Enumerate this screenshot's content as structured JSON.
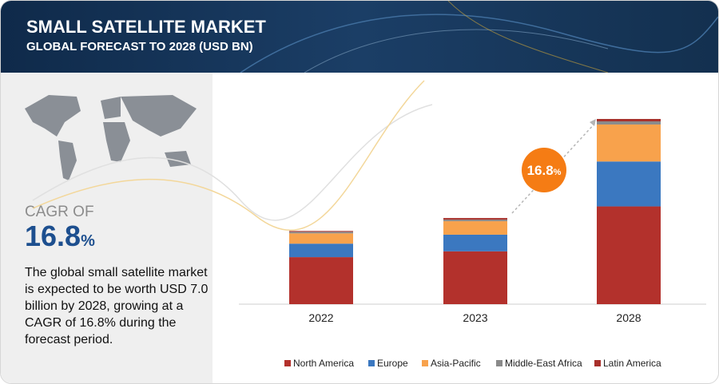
{
  "chart_data": {
    "type": "stacked-bar",
    "title": "SMALL SATELLITE MARKET",
    "subtitle": "GLOBAL FORECAST TO 2028 (USD BN)",
    "cagr_label": "CAGR OF",
    "cagr_value": "16.8",
    "cagr_unit": "%",
    "description": "The global small satellite market is expected to be worth USD 7.0 billion by 2028, growing at a CAGR of 16.8% during the forecast period.",
    "bubble_value": "16.8",
    "bubble_unit": "%",
    "categories": [
      "2022",
      "2023",
      "2028"
    ],
    "series": [
      {
        "name": "North America",
        "color": "#b3312c",
        "values": [
          1.78,
          2.0,
          3.7
        ]
      },
      {
        "name": "Europe",
        "color": "#3b78c0",
        "values": [
          0.51,
          0.63,
          1.7
        ]
      },
      {
        "name": "Asia-Pacific",
        "color": "#f8a24c",
        "values": [
          0.39,
          0.51,
          1.4
        ]
      },
      {
        "name": "Middle-East Africa",
        "color": "#8a8a8a",
        "values": [
          0.06,
          0.06,
          0.12
        ]
      },
      {
        "name": "Latin America",
        "color": "#a8302b",
        "values": [
          0.03,
          0.06,
          0.09
        ]
      }
    ]
  }
}
